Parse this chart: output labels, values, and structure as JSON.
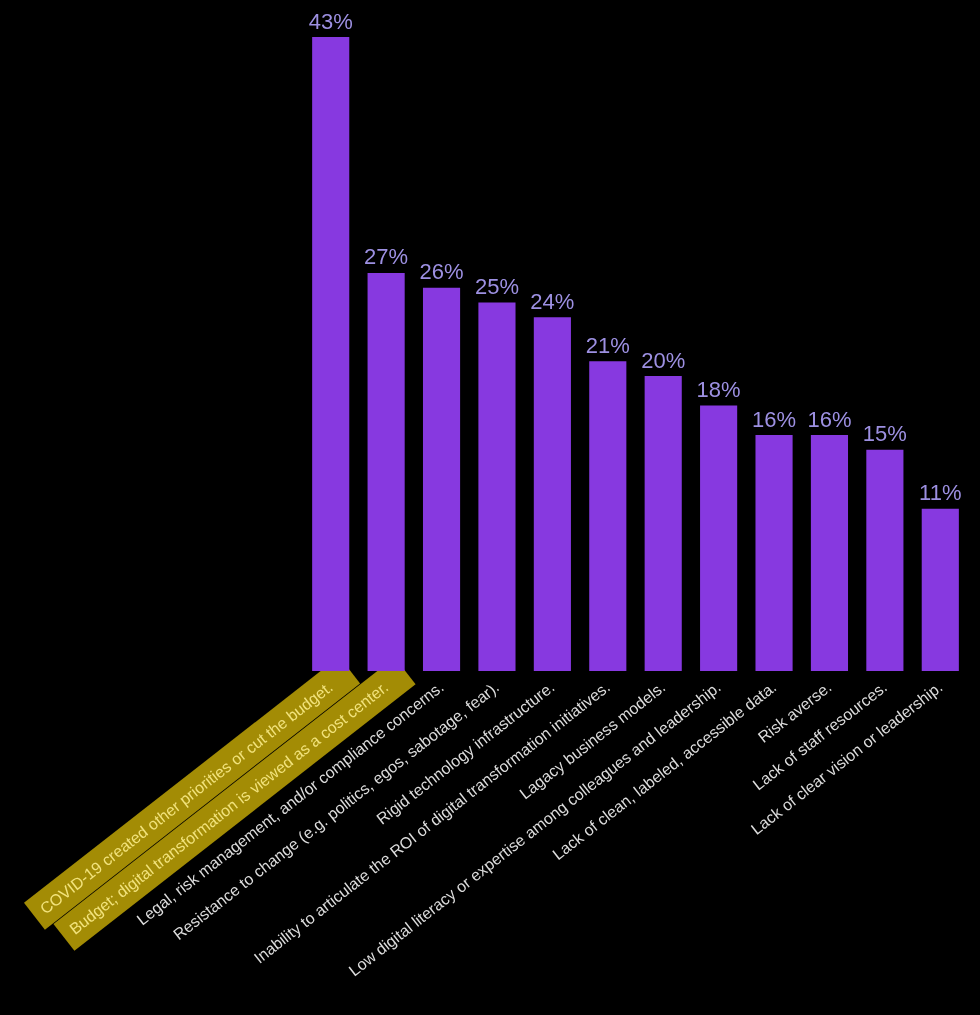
{
  "chart_data": {
    "type": "bar",
    "categories": [
      "COVID-19 created other priorities or cut the budget.",
      "Budget; digital transformation is viewed as a cost center.",
      "Legal, risk management, and/or compliance concerns.",
      "Resistance to change (e.g. politics, egos, sabotage, fear).",
      "Rigid technology infrastructure.",
      "Inability to articulate the ROI of digital transformation initiatives.",
      "Lagacy business models.",
      "Low digital literacy or expertise among colleagues and leadership.",
      "Lack of clean, labeled, accessible data.",
      "Risk averse.",
      "Lack of staff resources.",
      "Lack of clear vision or leadership."
    ],
    "values": [
      43,
      27,
      26,
      25,
      24,
      21,
      20,
      18,
      16,
      16,
      15,
      11
    ],
    "value_labels": [
      "43%",
      "27%",
      "26%",
      "25%",
      "24%",
      "21%",
      "20%",
      "18%",
      "16%",
      "16%",
      "15%",
      "11%"
    ],
    "color": "#8739e0"
  }
}
